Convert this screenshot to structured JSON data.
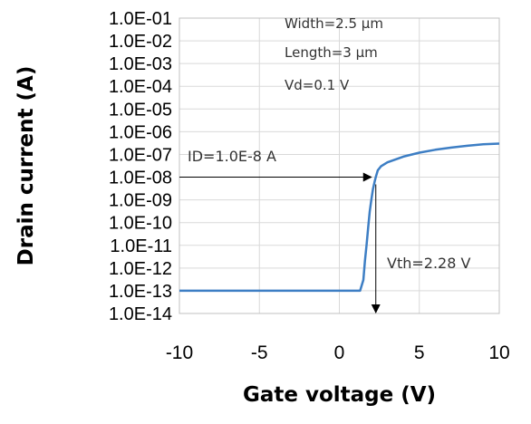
{
  "chart_data": {
    "type": "line",
    "xlabel": "Gate voltage (V)",
    "ylabel": "Drain current (A)",
    "xlim": [
      -10,
      10
    ],
    "ylim": [
      1e-14,
      0.1
    ],
    "yscale": "log",
    "grid": true,
    "x_ticks": [
      "-10",
      "-5",
      "0",
      "5",
      "10"
    ],
    "y_ticks": [
      "1.0E-14",
      "1.0E-13",
      "1.0E-12",
      "1.0E-11",
      "1.0E-10",
      "1.0E-09",
      "1.0E-08",
      "1.0E-07",
      "1.0E-06",
      "1.0E-05",
      "1.0E-04",
      "1.0E-03",
      "1.0E-02",
      "1.0E-01"
    ],
    "series": [
      {
        "color": "#3d7ec4",
        "x": [
          -10,
          1.3,
          1.5,
          1.6,
          1.7,
          1.8,
          1.9,
          2.0,
          2.1,
          2.2,
          2.28,
          2.4,
          2.6,
          3.0,
          4.0,
          5.0,
          6.0,
          7.0,
          8.0,
          9.0,
          10.0
        ],
        "y": [
          1e-13,
          1e-13,
          3e-13,
          2e-12,
          1e-11,
          6e-11,
          3e-10,
          1e-09,
          3e-09,
          6e-09,
          1e-08,
          2e-08,
          3e-08,
          4.5e-08,
          8e-08,
          1.2e-07,
          1.6e-07,
          2e-07,
          2.4e-07,
          2.8e-07,
          3e-07
        ]
      }
    ],
    "annotations": {
      "width": "Width=2.5 µm",
      "length": "Length=3 µm",
      "vd": "Vd=0.1 V",
      "id": "ID=1.0E-8 A",
      "vth": "Vth=2.28 V"
    },
    "markers": {
      "id_value": 1e-08,
      "vth_value": 2.28
    }
  }
}
